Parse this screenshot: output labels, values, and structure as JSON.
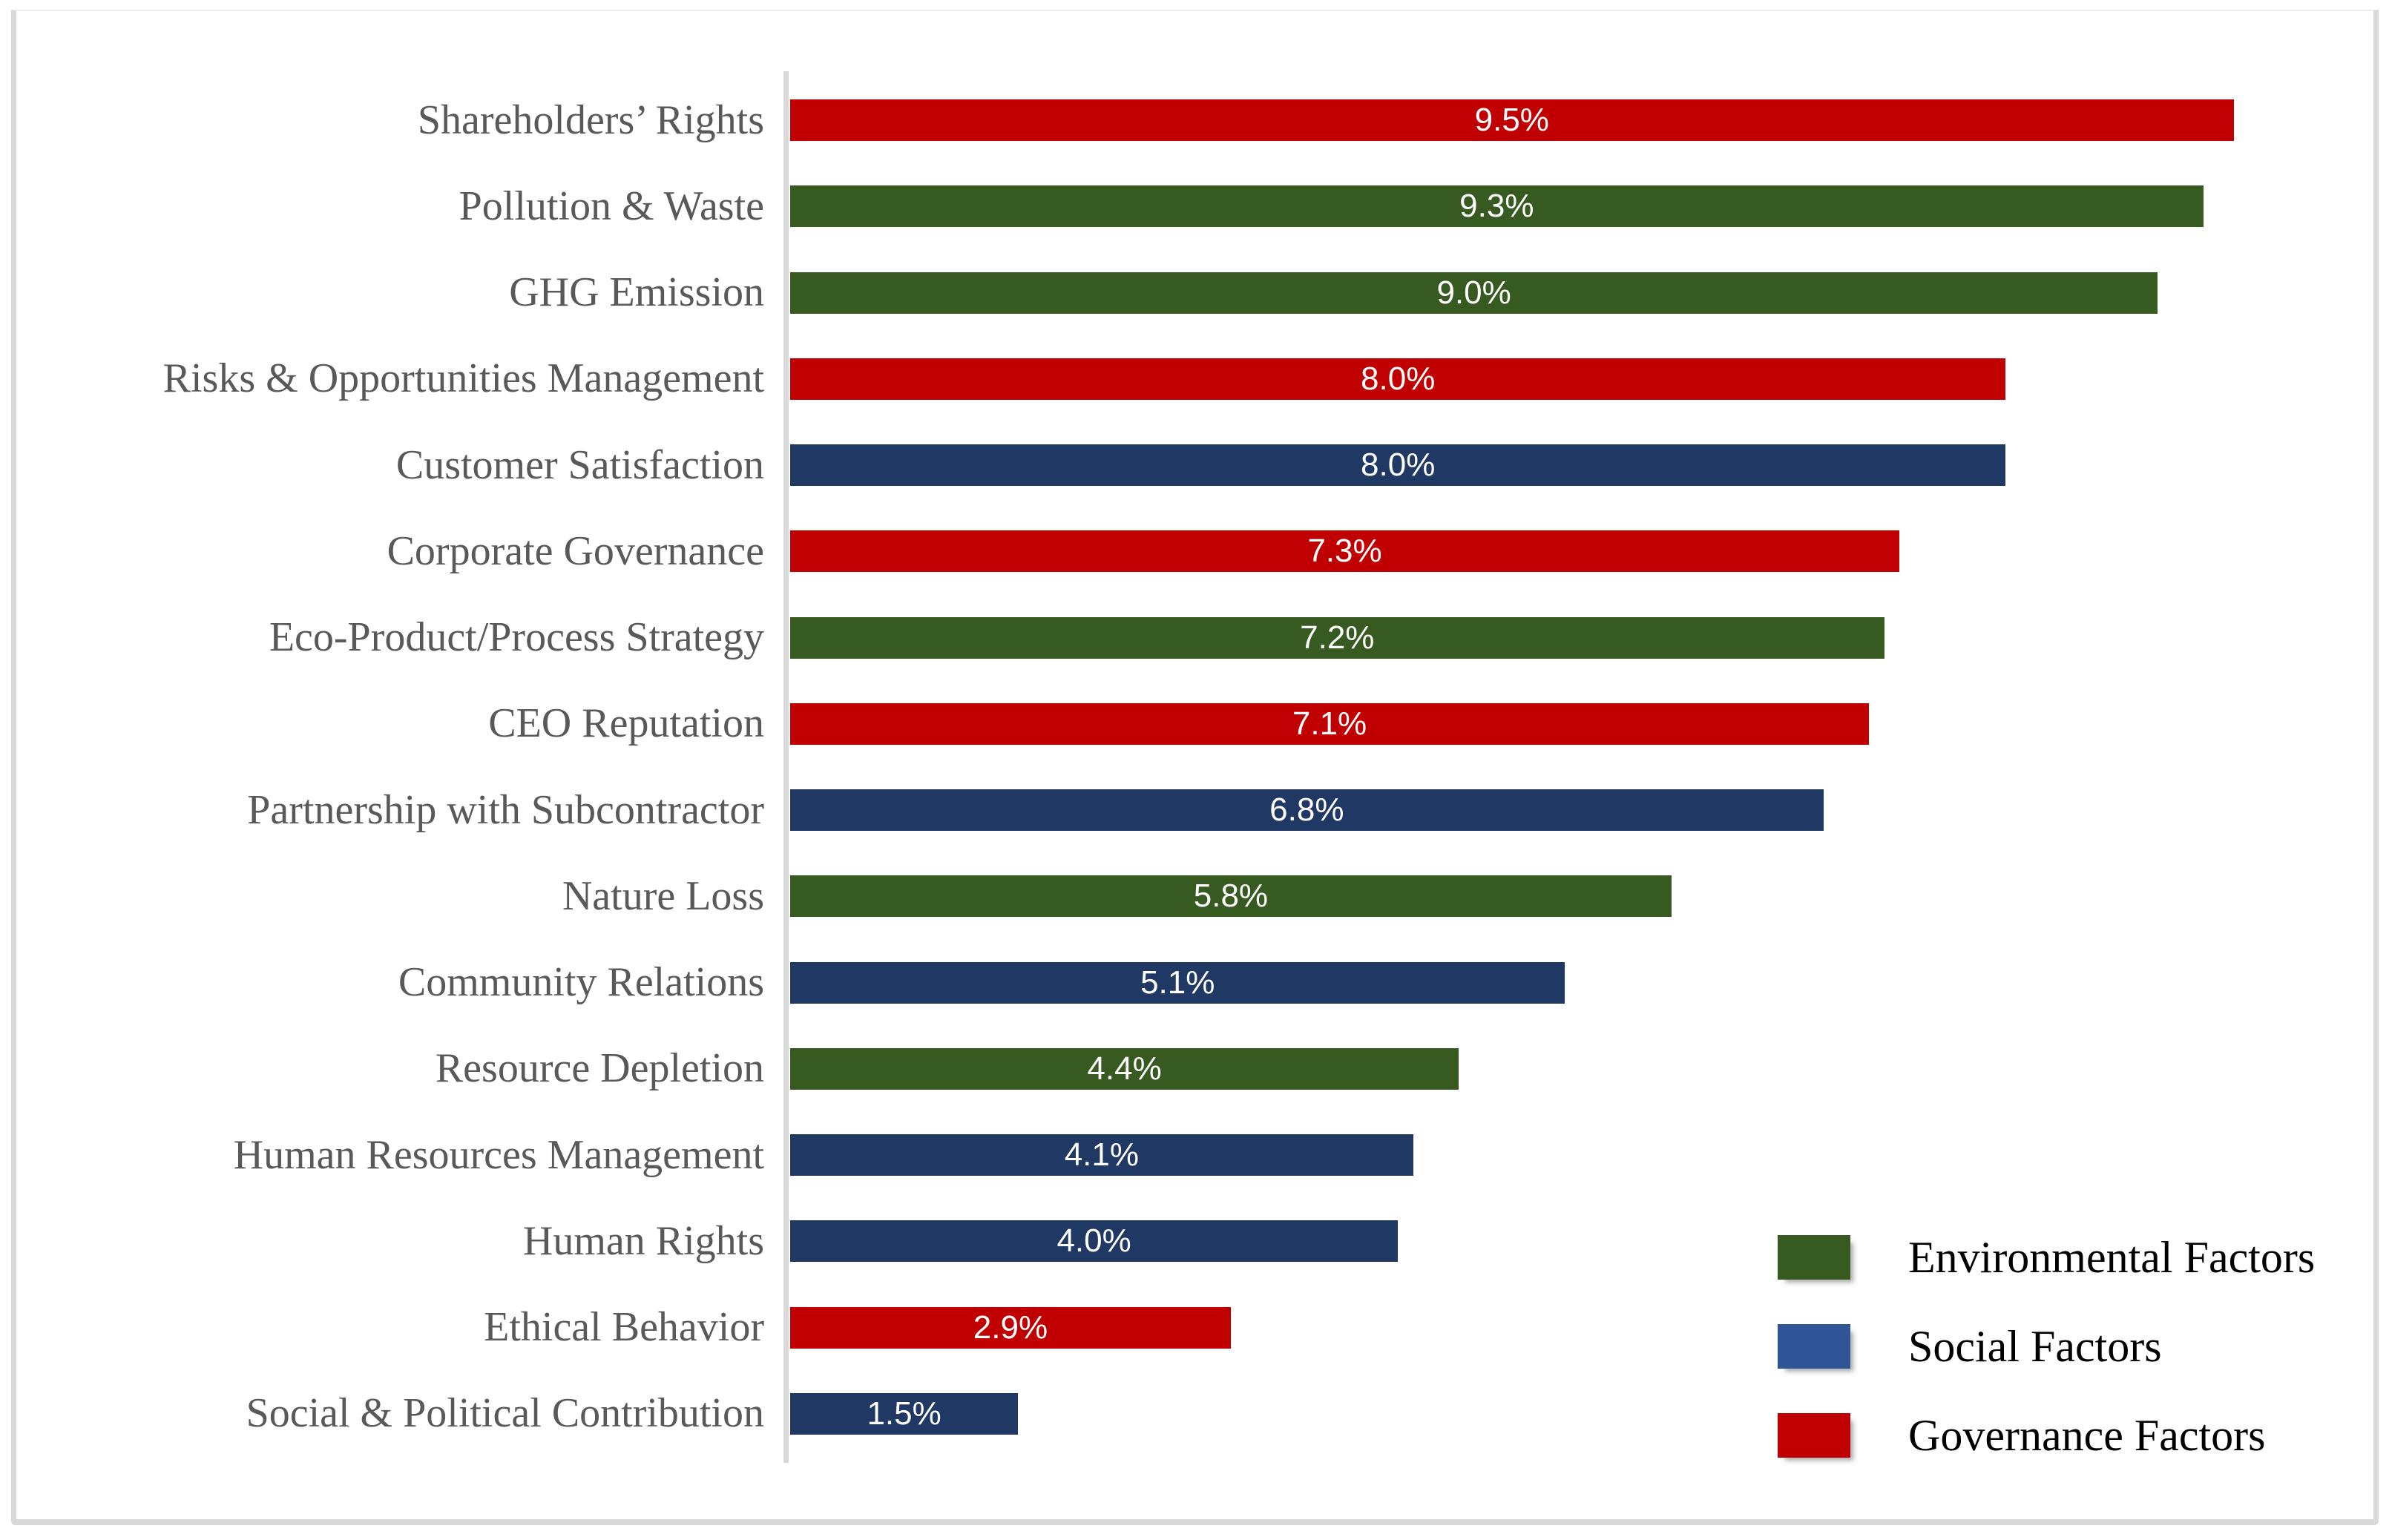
{
  "colors": {
    "bar": {
      "environmental": "#375A20",
      "social": "#203864",
      "governance": "#C00000"
    },
    "legend_swatch": {
      "environmental": "#375A20",
      "social": "#2F5597",
      "governance": "#C00000"
    },
    "axis_line": "#D9D9D9",
    "frame_border": "#D9D9D9",
    "category_text": "#595959",
    "value_text": "#FFFFFF",
    "legend_text": "#000000"
  },
  "chart_data": {
    "type": "bar",
    "orientation": "horizontal",
    "title": "",
    "xlabel": "",
    "ylabel": "",
    "xlim": [
      0,
      10
    ],
    "grid": false,
    "value_format": "percent, 1 decimal",
    "value_label_position": "center of bar, white",
    "legend_position": "bottom-right",
    "bars": [
      {
        "category": "Shareholders’ Rights",
        "value": 9.5,
        "label": "9.5%",
        "group": "governance"
      },
      {
        "category": "Pollution & Waste",
        "value": 9.3,
        "label": "9.3%",
        "group": "environmental"
      },
      {
        "category": "GHG Emission",
        "value": 9.0,
        "label": "9.0%",
        "group": "environmental"
      },
      {
        "category": "Risks & Opportunities Management",
        "value": 8.0,
        "label": "8.0%",
        "group": "governance"
      },
      {
        "category": "Customer Satisfaction",
        "value": 8.0,
        "label": "8.0%",
        "group": "social"
      },
      {
        "category": "Corporate Governance",
        "value": 7.3,
        "label": "7.3%",
        "group": "governance"
      },
      {
        "category": "Eco-Product/Process Strategy",
        "value": 7.2,
        "label": "7.2%",
        "group": "environmental"
      },
      {
        "category": "CEO Reputation",
        "value": 7.1,
        "label": "7.1%",
        "group": "governance"
      },
      {
        "category": "Partnership with Subcontractor",
        "value": 6.8,
        "label": "6.8%",
        "group": "social"
      },
      {
        "category": "Nature Loss",
        "value": 5.8,
        "label": "5.8%",
        "group": "environmental"
      },
      {
        "category": "Community Relations",
        "value": 5.1,
        "label": "5.1%",
        "group": "social"
      },
      {
        "category": "Resource Depletion",
        "value": 4.4,
        "label": "4.4%",
        "group": "environmental"
      },
      {
        "category": "Human Resources Management",
        "value": 4.1,
        "label": "4.1%",
        "group": "social"
      },
      {
        "category": "Human Rights",
        "value": 4.0,
        "label": "4.0%",
        "group": "social"
      },
      {
        "category": "Ethical Behavior",
        "value": 2.9,
        "label": "2.9%",
        "group": "governance"
      },
      {
        "category": "Social & Political Contribution",
        "value": 1.5,
        "label": "1.5%",
        "group": "social"
      }
    ],
    "legend": [
      {
        "label": "Environmental Factors",
        "group": "environmental"
      },
      {
        "label": "Social Factors",
        "group": "social"
      },
      {
        "label": "Governance Factors",
        "group": "governance"
      }
    ]
  }
}
